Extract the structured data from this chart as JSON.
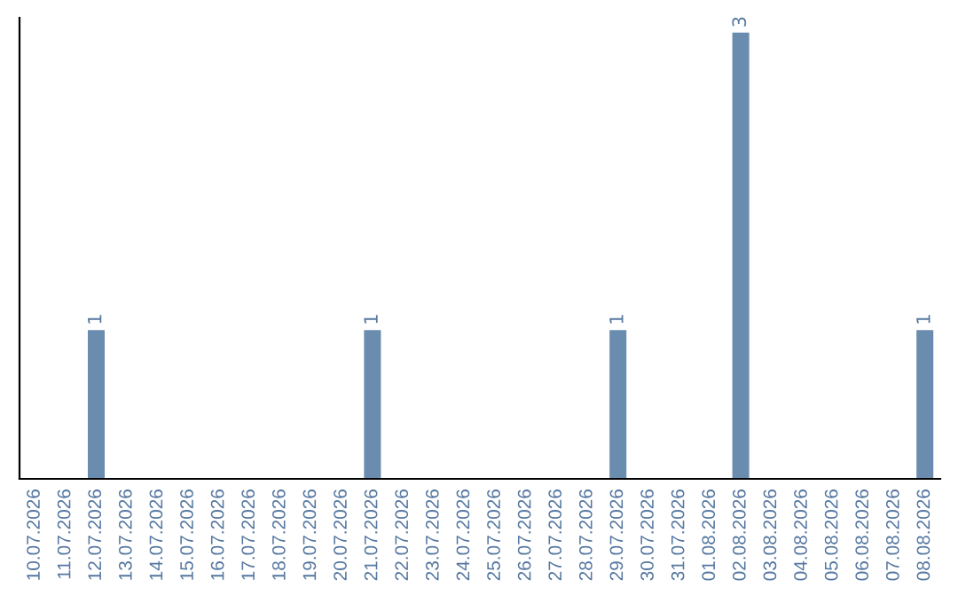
{
  "chart_data": {
    "type": "bar",
    "categories": [
      "10.07.2026",
      "11.07.2026",
      "12.07.2026",
      "13.07.2026",
      "14.07.2026",
      "15.07.2026",
      "16.07.2026",
      "17.07.2026",
      "18.07.2026",
      "19.07.2026",
      "20.07.2026",
      "21.07.2026",
      "22.07.2026",
      "23.07.2026",
      "24.07.2026",
      "25.07.2026",
      "26.07.2026",
      "27.07.2026",
      "28.07.2026",
      "29.07.2026",
      "30.07.2026",
      "31.07.2026",
      "01.08.2026",
      "02.08.2026",
      "03.08.2026",
      "04.08.2026",
      "05.08.2026",
      "06.08.2026",
      "07.08.2026",
      "08.08.2026"
    ],
    "values": [
      0,
      0,
      1,
      0,
      0,
      0,
      0,
      0,
      0,
      0,
      0,
      1,
      0,
      0,
      0,
      0,
      0,
      0,
      0,
      1,
      0,
      0,
      0,
      3,
      0,
      0,
      0,
      0,
      0,
      1
    ],
    "value_labels": [
      null,
      null,
      "1",
      null,
      null,
      null,
      null,
      null,
      null,
      null,
      null,
      "1",
      null,
      null,
      null,
      null,
      null,
      null,
      null,
      "1",
      null,
      null,
      null,
      "3",
      null,
      null,
      null,
      null,
      null,
      "1"
    ],
    "color": "#6a8caf",
    "ylim": [
      0,
      3.1
    ],
    "tick_labels": "x",
    "grid": false,
    "legend": false
  }
}
